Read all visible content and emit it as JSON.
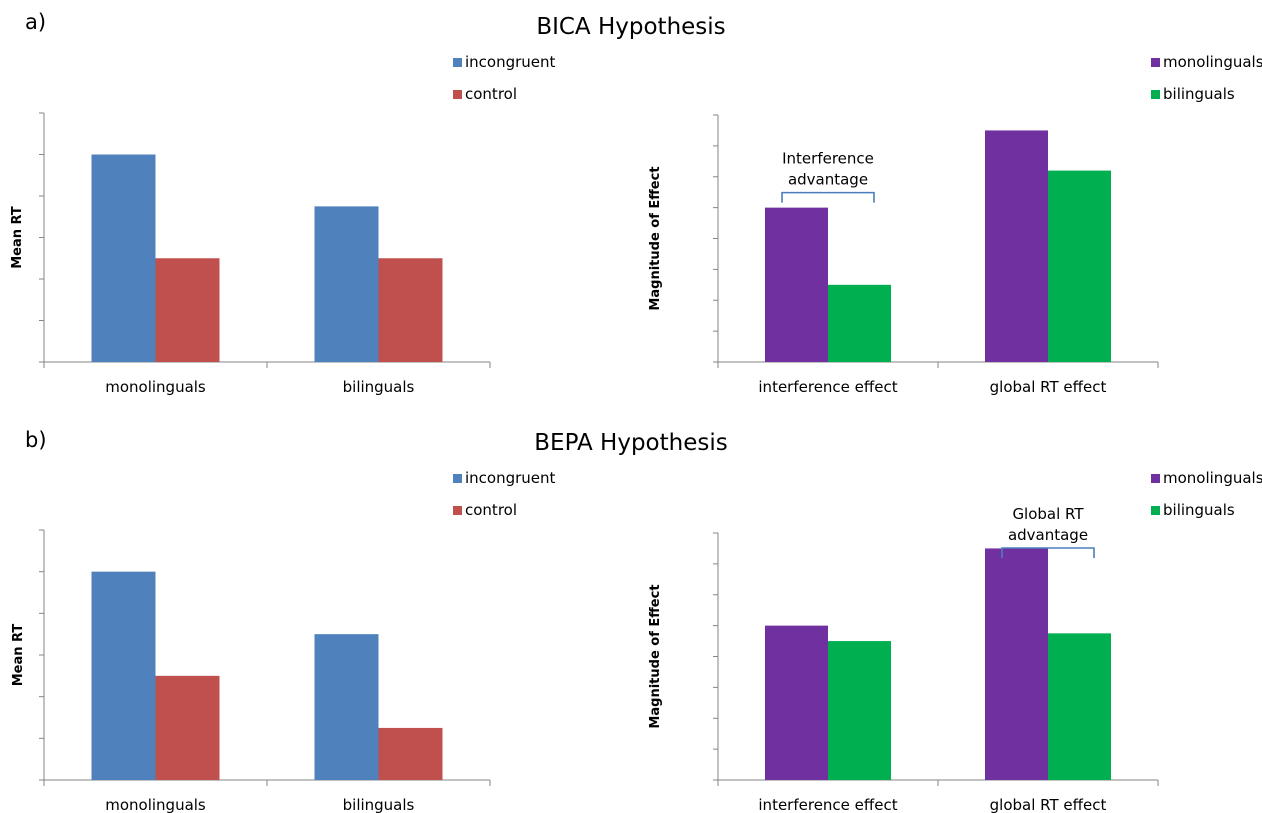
{
  "colors": {
    "incongruent": "#4f81bd",
    "control": "#c0504d",
    "monolinguals": "#7030a0",
    "bilinguals": "#00b050",
    "axis": "#868686",
    "bracket": "#4a7ebb"
  },
  "sections": [
    {
      "label": "a)",
      "title": "BICA Hypothesis",
      "left_legend": [
        "incongruent",
        "control"
      ],
      "right_legend": [
        "monolinguals",
        "bilinguals"
      ]
    },
    {
      "label": "b)",
      "title": "BEPA Hypothesis",
      "left_legend": [
        "incongruent",
        "control"
      ],
      "right_legend": [
        "monolinguals",
        "bilinguals"
      ]
    }
  ],
  "chart_data": [
    {
      "type": "bar",
      "title": "BICA Hypothesis",
      "categories": [
        "monolinguals",
        "bilinguals"
      ],
      "ylabel": "Mean RT",
      "ylim": [
        0,
        6
      ],
      "yticks": 6,
      "legend_position": "top-right",
      "series": [
        {
          "name": "incongruent",
          "values": [
            5.0,
            3.75
          ]
        },
        {
          "name": "control",
          "values": [
            2.5,
            2.5
          ]
        }
      ]
    },
    {
      "type": "bar",
      "title": "BICA Hypothesis",
      "categories": [
        "interference effect",
        "global RT effect"
      ],
      "ylabel": "Magnitude of Effect",
      "ylim": [
        0,
        8
      ],
      "yticks": 8,
      "legend_position": "top-right",
      "annotation": {
        "text": [
          "Interference",
          "advantage"
        ],
        "category_index": 0
      },
      "series": [
        {
          "name": "monolinguals",
          "values": [
            5.0,
            7.5
          ]
        },
        {
          "name": "bilinguals",
          "values": [
            2.5,
            6.2
          ]
        }
      ]
    },
    {
      "type": "bar",
      "title": "BEPA Hypothesis",
      "categories": [
        "monolinguals",
        "bilinguals"
      ],
      "ylabel": "Mean RT",
      "ylim": [
        0,
        6
      ],
      "yticks": 6,
      "legend_position": "top-right",
      "series": [
        {
          "name": "incongruent",
          "values": [
            5.0,
            3.5
          ]
        },
        {
          "name": "control",
          "values": [
            2.5,
            1.25
          ]
        }
      ]
    },
    {
      "type": "bar",
      "title": "BEPA Hypothesis",
      "categories": [
        "interference effect",
        "global RT effect"
      ],
      "ylabel": "Magnitude of Effect",
      "ylim": [
        0,
        8
      ],
      "yticks": 8,
      "legend_position": "top-right",
      "annotation": {
        "text": [
          "Global RT",
          "advantage"
        ],
        "category_index": 1
      },
      "series": [
        {
          "name": "monolinguals",
          "values": [
            5.0,
            7.5
          ]
        },
        {
          "name": "bilinguals",
          "values": [
            4.5,
            4.75
          ]
        }
      ]
    }
  ]
}
